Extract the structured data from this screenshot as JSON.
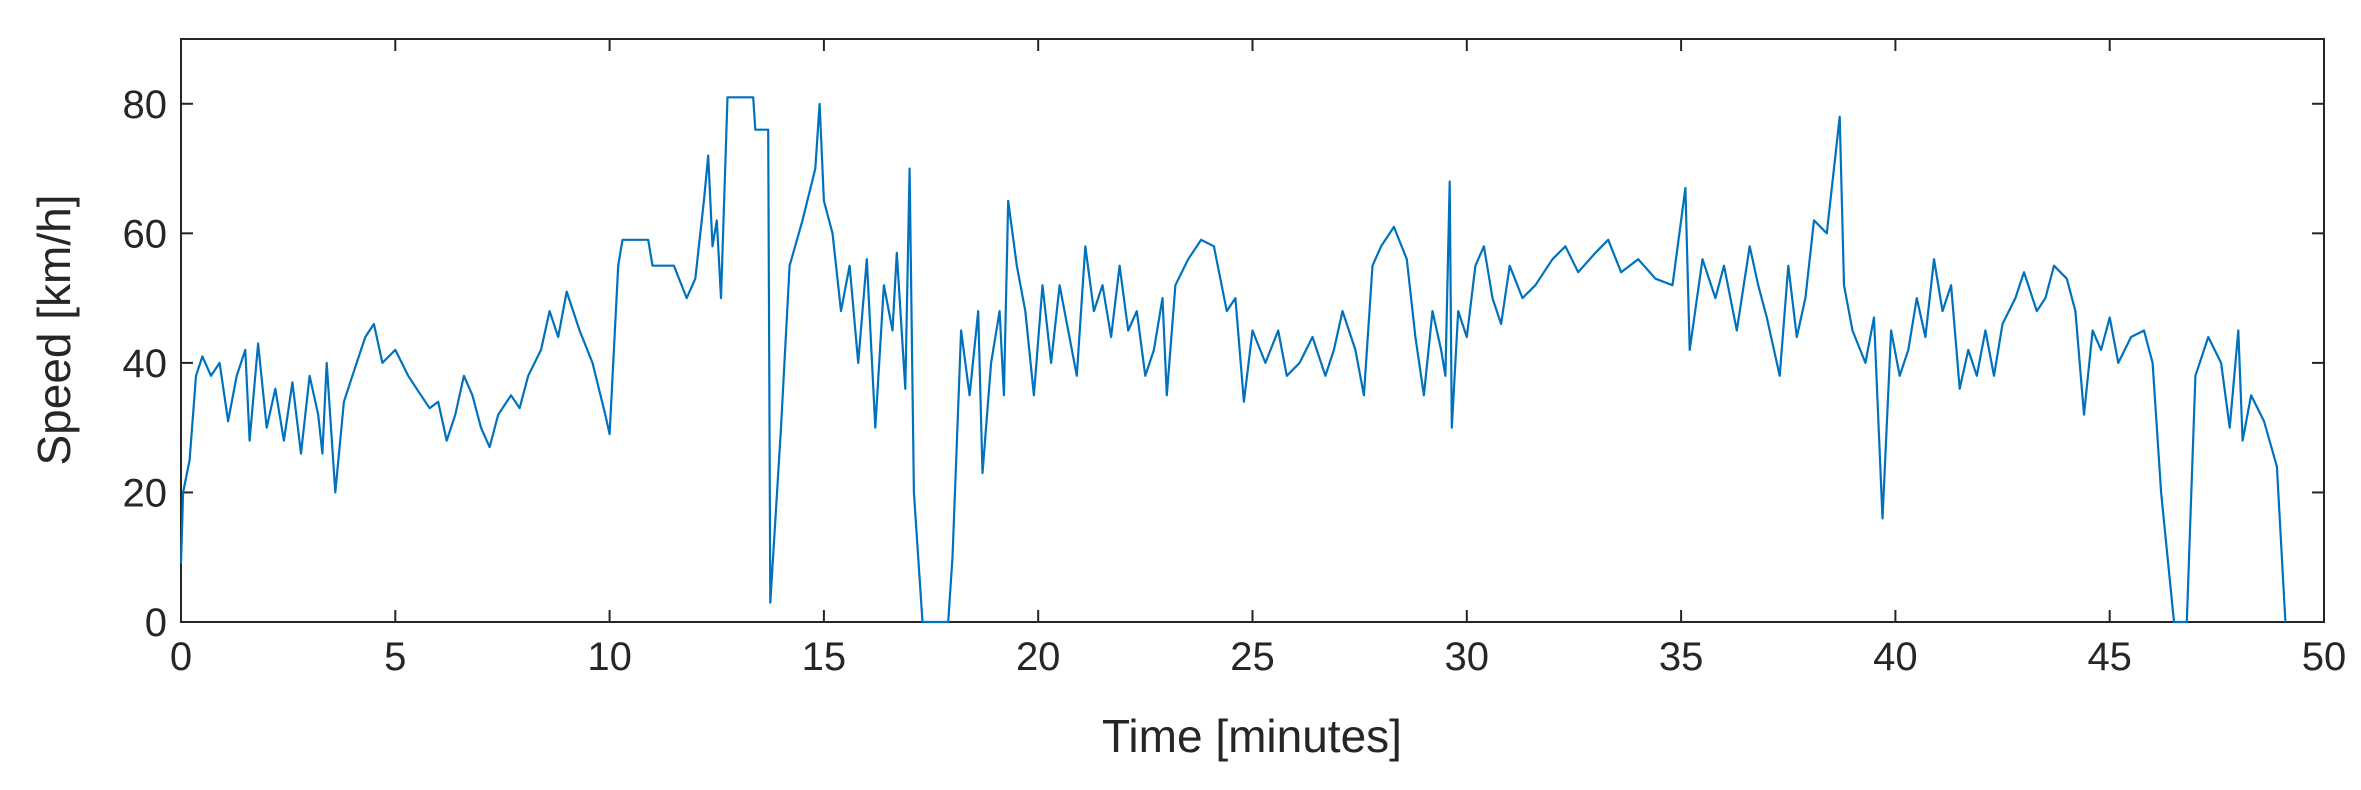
{
  "chart_data": {
    "type": "line",
    "xlabel": "Time [minutes]",
    "ylabel": "Speed [km/h]",
    "color": "#0072bd",
    "xlim": [
      0,
      50
    ],
    "xticks": [
      0,
      5,
      10,
      15,
      20,
      25,
      30,
      35,
      40,
      45,
      50
    ],
    "ylim": [
      0,
      90
    ],
    "yticks": [
      0,
      20,
      40,
      60,
      80
    ],
    "x": [
      0,
      0.05,
      0.2,
      0.35,
      0.5,
      0.7,
      0.9,
      1.1,
      1.3,
      1.5,
      1.6,
      1.8,
      2.0,
      2.2,
      2.4,
      2.6,
      2.8,
      3.0,
      3.2,
      3.3,
      3.4,
      3.6,
      3.8,
      4.0,
      4.3,
      4.5,
      4.7,
      5.0,
      5.3,
      5.5,
      5.8,
      6.0,
      6.2,
      6.4,
      6.6,
      6.8,
      7.0,
      7.2,
      7.4,
      7.7,
      7.9,
      8.1,
      8.4,
      8.6,
      8.8,
      9.0,
      9.3,
      9.6,
      9.9,
      10.0,
      10.2,
      10.3,
      10.9,
      11.0,
      11.5,
      11.8,
      12.0,
      12.2,
      12.3,
      12.4,
      12.5,
      12.6,
      12.75,
      13.35,
      13.4,
      13.7,
      13.75,
      14.0,
      14.2,
      14.5,
      14.8,
      14.9,
      15.0,
      15.2,
      15.4,
      15.6,
      15.8,
      16.0,
      16.2,
      16.4,
      16.6,
      16.7,
      16.9,
      17.0,
      17.1,
      17.3,
      17.9,
      18.0,
      18.2,
      18.4,
      18.6,
      18.7,
      18.9,
      19.1,
      19.2,
      19.3,
      19.5,
      19.7,
      19.9,
      20.1,
      20.3,
      20.5,
      20.7,
      20.9,
      21.1,
      21.3,
      21.5,
      21.7,
      21.9,
      22.1,
      22.3,
      22.5,
      22.7,
      22.9,
      23.0,
      23.2,
      23.5,
      23.8,
      24.1,
      24.4,
      24.6,
      24.8,
      25.0,
      25.3,
      25.6,
      25.8,
      26.1,
      26.4,
      26.7,
      26.9,
      27.1,
      27.4,
      27.6,
      27.8,
      28.0,
      28.3,
      28.6,
      28.8,
      29.0,
      29.2,
      29.4,
      29.5,
      29.6,
      29.65,
      29.8,
      30.0,
      30.2,
      30.4,
      30.6,
      30.8,
      31.0,
      31.3,
      31.6,
      32.0,
      32.3,
      32.6,
      33.0,
      33.3,
      33.6,
      34.0,
      34.4,
      34.8,
      35.1,
      35.2,
      35.5,
      35.8,
      36.0,
      36.3,
      36.6,
      36.8,
      37.0,
      37.3,
      37.5,
      37.7,
      37.9,
      38.1,
      38.4,
      38.7,
      38.8,
      39.0,
      39.3,
      39.5,
      39.7,
      39.9,
      40.1,
      40.3,
      40.5,
      40.7,
      40.9,
      41.1,
      41.3,
      41.5,
      41.7,
      41.9,
      42.1,
      42.3,
      42.5,
      42.8,
      43.0,
      43.3,
      43.5,
      43.7,
      44.0,
      44.2,
      44.4,
      44.6,
      44.8,
      45.0,
      45.2,
      45.5,
      45.8,
      46.0,
      46.2,
      46.5,
      46.8,
      47.0,
      47.3,
      47.6,
      47.8,
      48.0,
      48.1,
      48.3,
      48.6,
      48.9,
      49.1
    ],
    "values": [
      9,
      20,
      25,
      38,
      41,
      38,
      40,
      31,
      38,
      42,
      28,
      43,
      30,
      36,
      28,
      37,
      26,
      38,
      32,
      26,
      40,
      20,
      34,
      38,
      44,
      46,
      40,
      42,
      38,
      36,
      33,
      34,
      28,
      32,
      38,
      35,
      30,
      27,
      32,
      35,
      33,
      38,
      42,
      48,
      44,
      51,
      45,
      40,
      32,
      29,
      55,
      59,
      59,
      55,
      55,
      50,
      53,
      65,
      72,
      58,
      62,
      50,
      81,
      81,
      76,
      76,
      3,
      30,
      55,
      62,
      70,
      80,
      65,
      60,
      48,
      55,
      40,
      56,
      30,
      52,
      45,
      57,
      36,
      70,
      20,
      0,
      0,
      10,
      45,
      35,
      48,
      23,
      40,
      48,
      35,
      65,
      55,
      48,
      35,
      52,
      40,
      52,
      45,
      38,
      58,
      48,
      52,
      44,
      55,
      45,
      48,
      38,
      42,
      50,
      35,
      52,
      56,
      59,
      58,
      48,
      50,
      34,
      45,
      40,
      45,
      38,
      40,
      44,
      38,
      42,
      48,
      42,
      35,
      55,
      58,
      61,
      56,
      44,
      35,
      48,
      42,
      38,
      68,
      30,
      48,
      44,
      55,
      58,
      50,
      46,
      55,
      50,
      52,
      56,
      58,
      54,
      57,
      59,
      54,
      56,
      53,
      52,
      67,
      42,
      56,
      50,
      55,
      45,
      58,
      52,
      47,
      38,
      55,
      44,
      50,
      62,
      60,
      78,
      52,
      45,
      40,
      47,
      16,
      45,
      38,
      42,
      50,
      44,
      56,
      48,
      52,
      36,
      42,
      38,
      45,
      38,
      46,
      50,
      54,
      48,
      50,
      55,
      53,
      48,
      32,
      45,
      42,
      47,
      40,
      44,
      45,
      40,
      20,
      0,
      0,
      38,
      44,
      40,
      30,
      45,
      28,
      35,
      31,
      24,
      0
    ]
  }
}
